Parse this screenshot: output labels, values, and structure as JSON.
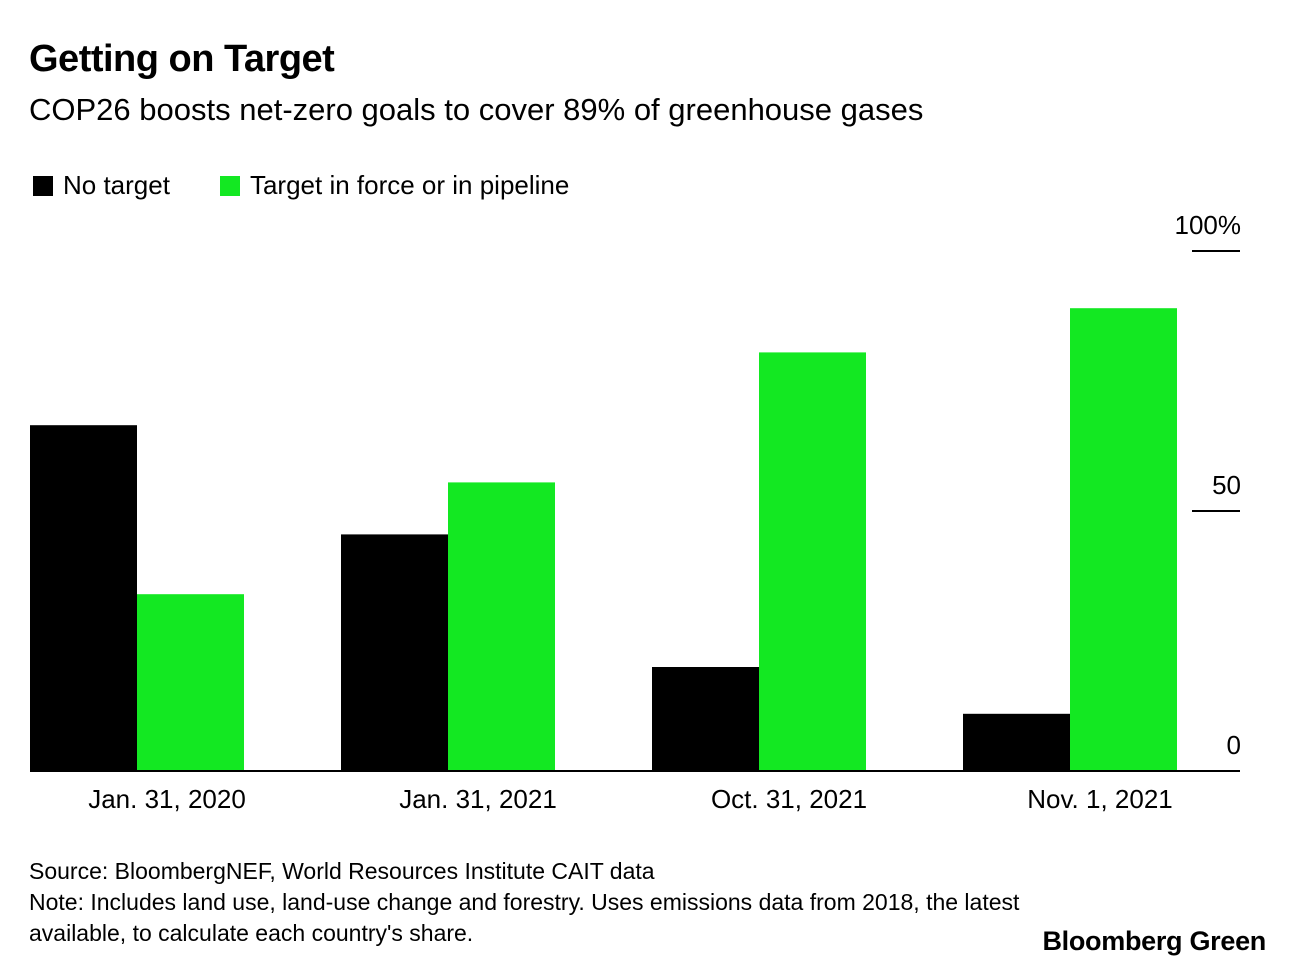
{
  "colors": {
    "no_target": "#000000",
    "target": "#13E822",
    "axis": "#000000"
  },
  "header": {
    "title": "Getting on Target",
    "subtitle": "COP26 boosts net-zero goals to cover 89% of greenhouse gases"
  },
  "chart_data": {
    "type": "bar",
    "title": "Getting on Target",
    "subtitle": "COP26 boosts net-zero goals to cover 89% of greenhouse gases",
    "categories": [
      "Jan. 31, 2020",
      "Jan. 31, 2021",
      "Oct. 31, 2021",
      "Nov. 1, 2021"
    ],
    "series": [
      {
        "name": "No target",
        "color": "#000000",
        "values": [
          66.5,
          45.5,
          20,
          11
        ]
      },
      {
        "name": "Target in force or in pipeline",
        "color": "#13E822",
        "values": [
          34,
          55.5,
          80.5,
          89
        ]
      }
    ],
    "ylim": [
      0,
      100
    ],
    "y_ticks": [
      {
        "value": 100,
        "label": "100%"
      },
      {
        "value": 50,
        "label": "50"
      },
      {
        "value": 0,
        "label": "0"
      }
    ],
    "y_axis_side": "right",
    "xlabel": "",
    "ylabel": "",
    "grid": false,
    "legend": "top-left"
  },
  "footer": {
    "source": "Source: BloombergNEF, World Resources Institute CAIT data",
    "note_line1": "Note: Includes land use, land-use change and forestry. Uses emissions data from 2018, the latest",
    "note_line2": "available, to calculate each country's share.",
    "brand": "Bloomberg Green"
  }
}
